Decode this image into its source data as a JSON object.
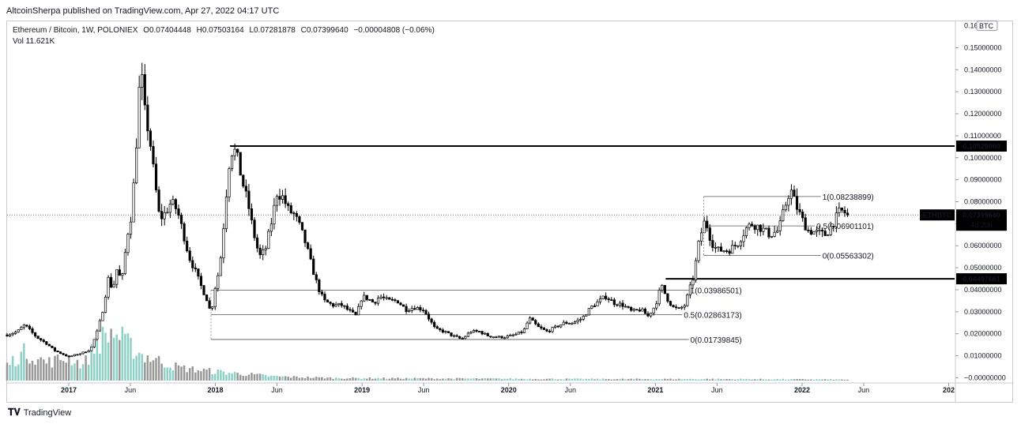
{
  "publisher": "AltcoinSherpa published on TradingView.com, Apr 27, 2022 04:17 UTC",
  "legend": {
    "symbol": "Ethereum / Bitcoin, 1W, POLONIEX",
    "open": "O0.07404448",
    "high": "H0.07503164",
    "low": "L0.07281878",
    "close": "C0.07399640",
    "change": "−0.00004808 (−0.06%)",
    "volume": "Vol  11.621K"
  },
  "currency_badge": "BTC",
  "footer_brand": "TradingView",
  "colors": {
    "up": "#ffffff",
    "down": "#000000",
    "outline": "#000000",
    "vol_up": "#7fcbc0",
    "vol_down": "#8c8c8c",
    "grid": "#e6e6e6"
  },
  "chart_data": {
    "type": "candlestick",
    "symbol": "ETHBTC",
    "y_unit": "BTC",
    "ylim": [
      -0.002,
      0.162
    ],
    "y_ticks": [
      {
        "value": 0.15,
        "label": "0.15000000"
      },
      {
        "value": 0.14,
        "label": "0.14000000"
      },
      {
        "value": 0.13,
        "label": "0.13000000"
      },
      {
        "value": 0.12,
        "label": "0.12000000"
      },
      {
        "value": 0.11,
        "label": "0.11000000"
      },
      {
        "value": 0.1,
        "label": "0.10000000"
      },
      {
        "value": 0.09,
        "label": "0.09000000"
      },
      {
        "value": 0.08,
        "label": "0.08000000"
      },
      {
        "value": 0.07,
        "label": "0.07000000"
      },
      {
        "value": 0.06,
        "label": "0.06000000"
      },
      {
        "value": 0.05,
        "label": "0.05000000"
      },
      {
        "value": 0.04,
        "label": "0.04000000"
      },
      {
        "value": 0.03,
        "label": "0.03000000"
      },
      {
        "value": 0.02,
        "label": "0.02000000"
      },
      {
        "value": 0.01,
        "label": "0.01000000"
      },
      {
        "value": 0.0,
        "label": "−0.00000000"
      }
    ],
    "top_tick_label": "0.16",
    "x_ticks": [
      {
        "t": 2017.0,
        "label": "2017",
        "bold": true
      },
      {
        "t": 2017.42,
        "label": "Jun",
        "bold": false
      },
      {
        "t": 2018.0,
        "label": "2018",
        "bold": true
      },
      {
        "t": 2018.42,
        "label": "Jun",
        "bold": false
      },
      {
        "t": 2019.0,
        "label": "2019",
        "bold": true
      },
      {
        "t": 2019.42,
        "label": "Jun",
        "bold": false
      },
      {
        "t": 2020.0,
        "label": "2020",
        "bold": true
      },
      {
        "t": 2020.42,
        "label": "Jun",
        "bold": false
      },
      {
        "t": 2021.0,
        "label": "2021",
        "bold": true
      },
      {
        "t": 2021.42,
        "label": "Jun",
        "bold": false
      },
      {
        "t": 2022.0,
        "label": "2022",
        "bold": true
      },
      {
        "t": 2022.42,
        "label": "Jun",
        "bold": false
      },
      {
        "t": 2023.0,
        "label": "202",
        "bold": true
      }
    ],
    "xlim": [
      2016.58,
      2023.04
    ],
    "price_path": [
      [
        2016.58,
        0.0195
      ],
      [
        2016.65,
        0.021
      ],
      [
        2016.7,
        0.024
      ],
      [
        2016.78,
        0.0185
      ],
      [
        2016.85,
        0.0155
      ],
      [
        2016.9,
        0.0125
      ],
      [
        2016.95,
        0.011
      ],
      [
        2017.0,
        0.0095
      ],
      [
        2017.05,
        0.0105
      ],
      [
        2017.1,
        0.0115
      ],
      [
        2017.15,
        0.013
      ],
      [
        2017.2,
        0.022
      ],
      [
        2017.23,
        0.03
      ],
      [
        2017.27,
        0.045
      ],
      [
        2017.3,
        0.04
      ],
      [
        2017.33,
        0.05
      ],
      [
        2017.36,
        0.043
      ],
      [
        2017.4,
        0.065
      ],
      [
        2017.43,
        0.075
      ],
      [
        2017.46,
        0.105
      ],
      [
        2017.49,
        0.142
      ],
      [
        2017.52,
        0.12
      ],
      [
        2017.55,
        0.11
      ],
      [
        2017.58,
        0.093
      ],
      [
        2017.62,
        0.072
      ],
      [
        2017.66,
        0.075
      ],
      [
        2017.7,
        0.08
      ],
      [
        2017.74,
        0.076
      ],
      [
        2017.78,
        0.066
      ],
      [
        2017.82,
        0.055
      ],
      [
        2017.86,
        0.049
      ],
      [
        2017.9,
        0.042
      ],
      [
        2017.94,
        0.036
      ],
      [
        2017.97,
        0.029
      ],
      [
        2018.0,
        0.042
      ],
      [
        2018.03,
        0.05
      ],
      [
        2018.06,
        0.072
      ],
      [
        2018.09,
        0.096
      ],
      [
        2018.12,
        0.105
      ],
      [
        2018.15,
        0.1
      ],
      [
        2018.18,
        0.09
      ],
      [
        2018.22,
        0.08
      ],
      [
        2018.26,
        0.066
      ],
      [
        2018.3,
        0.055
      ],
      [
        2018.34,
        0.058
      ],
      [
        2018.38,
        0.07
      ],
      [
        2018.42,
        0.084
      ],
      [
        2018.46,
        0.082
      ],
      [
        2018.5,
        0.076
      ],
      [
        2018.54,
        0.074
      ],
      [
        2018.58,
        0.068
      ],
      [
        2018.62,
        0.06
      ],
      [
        2018.66,
        0.05
      ],
      [
        2018.7,
        0.041
      ],
      [
        2018.74,
        0.035
      ],
      [
        2018.8,
        0.033
      ],
      [
        2018.86,
        0.033
      ],
      [
        2018.92,
        0.03
      ],
      [
        2018.96,
        0.028
      ],
      [
        2019.0,
        0.037
      ],
      [
        2019.04,
        0.036
      ],
      [
        2019.08,
        0.034
      ],
      [
        2019.12,
        0.037
      ],
      [
        2019.18,
        0.035
      ],
      [
        2019.24,
        0.035
      ],
      [
        2019.3,
        0.031
      ],
      [
        2019.36,
        0.032
      ],
      [
        2019.42,
        0.031
      ],
      [
        2019.5,
        0.022
      ],
      [
        2019.56,
        0.021
      ],
      [
        2019.62,
        0.019
      ],
      [
        2019.68,
        0.0175
      ],
      [
        2019.74,
        0.021
      ],
      [
        2019.8,
        0.021
      ],
      [
        2019.86,
        0.019
      ],
      [
        2019.92,
        0.0185
      ],
      [
        2019.98,
        0.0185
      ],
      [
        2020.04,
        0.0195
      ],
      [
        2020.1,
        0.021
      ],
      [
        2020.14,
        0.027
      ],
      [
        2020.2,
        0.023
      ],
      [
        2020.26,
        0.021
      ],
      [
        2020.32,
        0.023
      ],
      [
        2020.38,
        0.025
      ],
      [
        2020.44,
        0.025
      ],
      [
        2020.5,
        0.027
      ],
      [
        2020.56,
        0.032
      ],
      [
        2020.62,
        0.035
      ],
      [
        2020.66,
        0.037
      ],
      [
        2020.72,
        0.034
      ],
      [
        2020.78,
        0.033
      ],
      [
        2020.84,
        0.03
      ],
      [
        2020.9,
        0.031
      ],
      [
        2020.95,
        0.028
      ],
      [
        2021.0,
        0.033
      ],
      [
        2021.04,
        0.042
      ],
      [
        2021.08,
        0.036
      ],
      [
        2021.12,
        0.032
      ],
      [
        2021.16,
        0.031
      ],
      [
        2021.2,
        0.033
      ],
      [
        2021.26,
        0.046
      ],
      [
        2021.3,
        0.063
      ],
      [
        2021.34,
        0.072
      ],
      [
        2021.38,
        0.062
      ],
      [
        2021.42,
        0.058
      ],
      [
        2021.46,
        0.058
      ],
      [
        2021.5,
        0.058
      ],
      [
        2021.56,
        0.061
      ],
      [
        2021.62,
        0.068
      ],
      [
        2021.66,
        0.07
      ],
      [
        2021.72,
        0.068
      ],
      [
        2021.78,
        0.065
      ],
      [
        2021.84,
        0.067
      ],
      [
        2021.88,
        0.077
      ],
      [
        2021.92,
        0.086
      ],
      [
        2021.96,
        0.078
      ],
      [
        2022.0,
        0.072
      ],
      [
        2022.04,
        0.067
      ],
      [
        2022.1,
        0.066
      ],
      [
        2022.16,
        0.065
      ],
      [
        2022.2,
        0.069
      ],
      [
        2022.26,
        0.076
      ],
      [
        2022.32,
        0.074
      ]
    ],
    "volume_path": [
      [
        2016.58,
        0.3
      ],
      [
        2016.7,
        0.55
      ],
      [
        2016.85,
        0.35
      ],
      [
        2017.0,
        0.45
      ],
      [
        2017.1,
        0.3
      ],
      [
        2017.2,
        0.75
      ],
      [
        2017.3,
        0.95
      ],
      [
        2017.4,
        0.7
      ],
      [
        2017.5,
        0.5
      ],
      [
        2017.6,
        0.4
      ],
      [
        2017.75,
        0.25
      ],
      [
        2017.9,
        0.2
      ],
      [
        2018.1,
        0.15
      ],
      [
        2018.4,
        0.08
      ],
      [
        2018.8,
        0.05
      ],
      [
        2019.5,
        0.04
      ],
      [
        2020.5,
        0.03
      ],
      [
        2021.5,
        0.03
      ],
      [
        2022.32,
        0.02
      ]
    ],
    "horizontal_lines": [
      {
        "value": 0.10529,
        "label": "0.10529000",
        "t_start": 2018.1,
        "bold": true
      },
      {
        "value": 0.04497661,
        "label": "0.04497661",
        "t_start": 2021.07,
        "bold": true
      }
    ],
    "fib_sets": [
      {
        "t_start": 2017.97,
        "t_end": 2021.6,
        "levels": [
          {
            "value": 0.03986501,
            "label": "1(0.03986501)",
            "t_start": 2017.97
          },
          {
            "value": 0.02863173,
            "label": "0.5(0.02863173)",
            "t_start": 2017.97
          },
          {
            "value": 0.01739845,
            "label": "0(0.01739845)",
            "t_start": 2017.97
          }
        ]
      },
      {
        "t_start": 2021.33,
        "t_end": 2022.5,
        "levels": [
          {
            "value": 0.08238899,
            "label": "1(0.08238899)",
            "t_start": 2021.33
          },
          {
            "value": 0.06901101,
            "label": "0.5(0.06901101)",
            "t_start": 2021.33
          },
          {
            "value": 0.05563302,
            "label": "0(0.05563302)",
            "t_start": 2021.33
          }
        ]
      }
    ],
    "last_price": {
      "value": 0.0739964,
      "label": "0.07399640",
      "symbol_tag": "ETHBTC",
      "countdown": "4d 20h"
    }
  }
}
